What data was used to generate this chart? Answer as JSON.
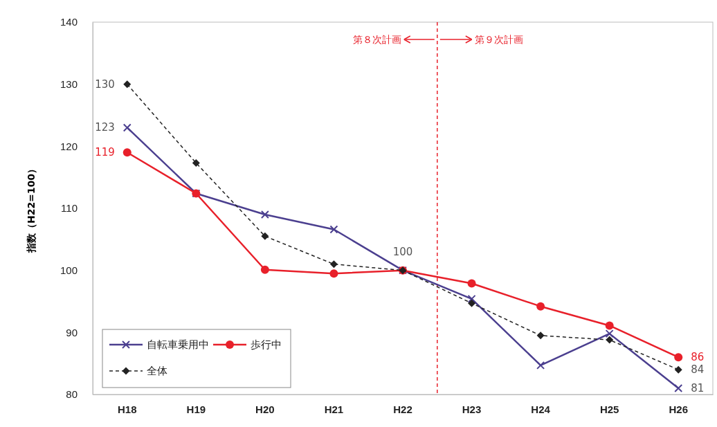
{
  "chart_data": {
    "type": "line",
    "ylabel": "指数（H22=100）",
    "categories": [
      "H18",
      "H19",
      "H20",
      "H21",
      "H22",
      "H23",
      "H24",
      "H25",
      "H26"
    ],
    "ylim": [
      80,
      140
    ],
    "yticks": [
      80,
      90,
      100,
      110,
      120,
      130,
      140
    ],
    "legend": "bottom left",
    "grid": false,
    "series": [
      {
        "name": "自転車乗用中",
        "color": "#4b3f8f",
        "marker": "cross",
        "line_style": "solid",
        "values": [
          123,
          112.4,
          109,
          106.6,
          100,
          95.4,
          84.7,
          89.8,
          81
        ],
        "value_labels": [
          "123",
          null,
          null,
          null,
          null,
          null,
          null,
          null,
          "81"
        ]
      },
      {
        "name": "歩行中",
        "color": "#e8202a",
        "marker": "circle",
        "line_style": "solid",
        "values": [
          119,
          112.4,
          100.1,
          99.5,
          100,
          97.9,
          94.2,
          91.1,
          86
        ],
        "value_labels": [
          "119",
          null,
          null,
          null,
          null,
          null,
          null,
          null,
          "86"
        ]
      },
      {
        "name": "全体",
        "color": "#222222",
        "marker": "diamond",
        "line_style": "dashed",
        "values": [
          130,
          117.3,
          105.5,
          101,
          100,
          94.7,
          89.5,
          88.8,
          84
        ],
        "value_labels": [
          "130",
          null,
          null,
          null,
          "100",
          null,
          null,
          null,
          "84"
        ]
      }
    ],
    "annotations": [
      "第８次計画",
      "第９次計画"
    ]
  }
}
